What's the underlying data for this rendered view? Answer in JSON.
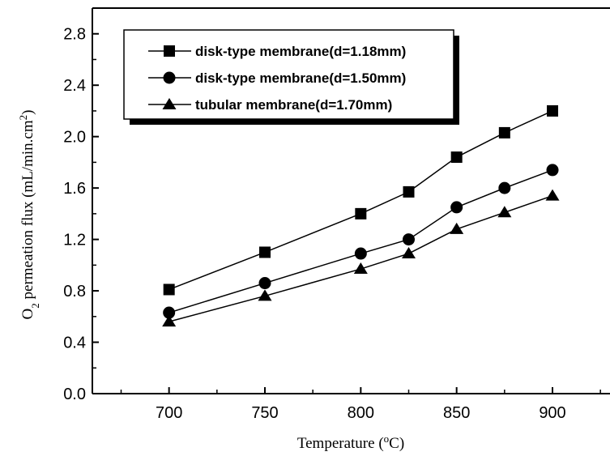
{
  "chart_data": {
    "type": "line",
    "xlabel": "Temperature (",
    "xlabel_sup": "o",
    "xlabel_end": "C)",
    "ylabel_o": "O",
    "ylabel_sub": "2",
    "ylabel_mid": " permeation flux (mL/min.cm",
    "ylabel_sup": "2",
    "ylabel_end": ")",
    "xlim": [
      660,
      930
    ],
    "ylim": [
      0.0,
      3.0
    ],
    "x_ticks": [
      700,
      750,
      800,
      850,
      900
    ],
    "x_tick_labels": [
      "700",
      "750",
      "800",
      "850",
      "900"
    ],
    "y_ticks": [
      0.0,
      0.4,
      0.8,
      1.2,
      1.6,
      2.0,
      2.4,
      2.8
    ],
    "y_tick_labels": [
      "0.0",
      "0.4",
      "0.8",
      "1.2",
      "1.6",
      "2.0",
      "2.4",
      "2.8"
    ],
    "grid": false,
    "legend_position": "top-left",
    "series": [
      {
        "name": "disk-type membrane(d=1.18mm)",
        "marker": "square",
        "x": [
          700,
          750,
          800,
          825,
          850,
          875,
          900
        ],
        "values": [
          0.81,
          1.1,
          1.4,
          1.57,
          1.84,
          2.03,
          2.2
        ]
      },
      {
        "name": "disk-type membrane(d=1.50mm)",
        "marker": "circle",
        "x": [
          700,
          750,
          800,
          825,
          850,
          875,
          900
        ],
        "values": [
          0.63,
          0.86,
          1.09,
          1.2,
          1.45,
          1.6,
          1.74
        ]
      },
      {
        "name": "tubular membrane(d=1.70mm)",
        "marker": "triangle",
        "x": [
          700,
          750,
          800,
          825,
          850,
          875,
          900
        ],
        "values": [
          0.56,
          0.76,
          0.97,
          1.09,
          1.28,
          1.41,
          1.54
        ]
      }
    ]
  }
}
